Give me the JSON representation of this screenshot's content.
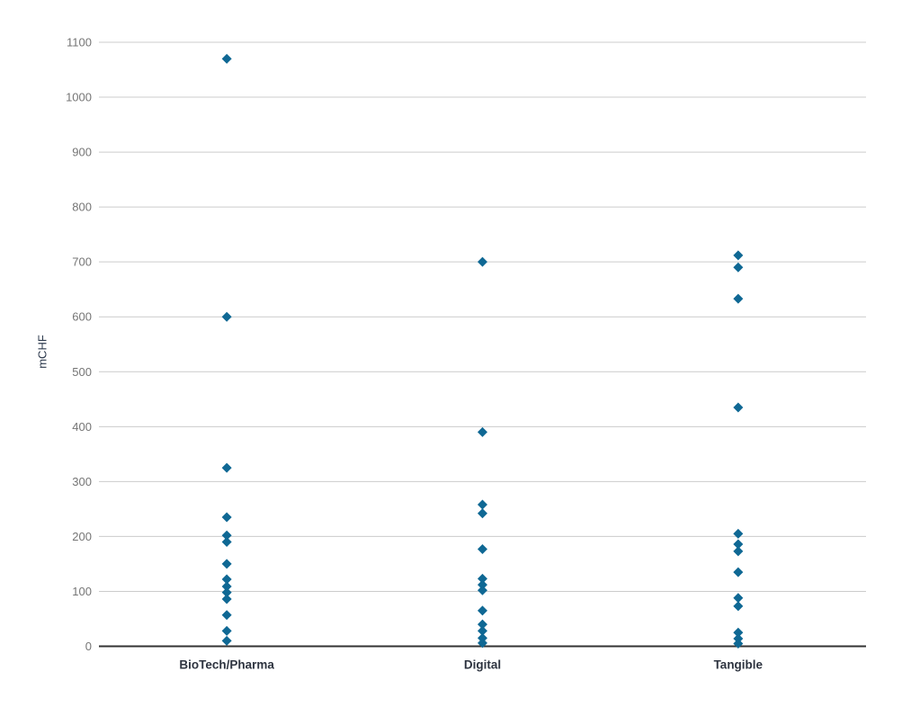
{
  "chart_data": {
    "type": "scatter",
    "title": "",
    "xlabel": "",
    "ylabel": "mCHF",
    "categories": [
      "BioTech/Pharma",
      "Digital",
      "Tangible"
    ],
    "series": [
      {
        "name": "BioTech/Pharma",
        "values": [
          1070,
          600,
          325,
          235,
          202,
          190,
          150,
          122,
          109,
          98,
          86,
          57,
          28,
          10
        ]
      },
      {
        "name": "Digital",
        "values": [
          700,
          390,
          258,
          242,
          177,
          123,
          112,
          102,
          65,
          40,
          28,
          15,
          6
        ]
      },
      {
        "name": "Tangible",
        "values": [
          712,
          690,
          633,
          435,
          205,
          186,
          173,
          135,
          88,
          73,
          25,
          14,
          5
        ]
      }
    ],
    "y_ticks": [
      0,
      100,
      200,
      300,
      400,
      500,
      600,
      700,
      800,
      900,
      1000,
      1100
    ],
    "ylim": [
      0,
      1177
    ],
    "grid": true,
    "legend_position": "none",
    "marker": {
      "shape": "diamond",
      "size": 11,
      "color": "#0f6894"
    },
    "colors": {
      "gridline": "#cccccc",
      "axis_line": "#333333",
      "tick_label": "#757575",
      "category_label": "#2e3440",
      "background": "#ffffff"
    }
  }
}
